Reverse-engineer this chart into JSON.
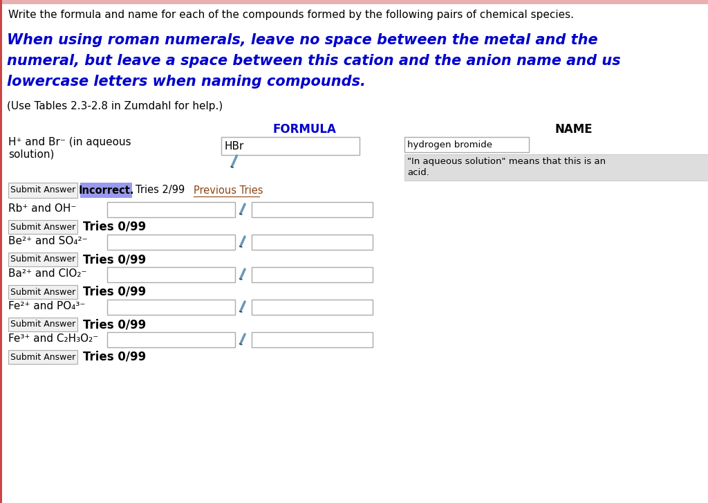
{
  "bg_color": "#ffffff",
  "top_border_color": "#e8a0a0",
  "header_text": "Write the formula and name for each of the compounds formed by the following pairs of chemical species.",
  "instruction_lines": [
    "When using roman numerals, leave no space between the metal and the",
    "numeral, but leave a space between this cation and the anion name and us",
    "lowercase letters when naming compounds."
  ],
  "instruction_color": "#0000cc",
  "zumdahl_note": "(Use Tables 2.3-2.8 in Zumdahl for help.)",
  "formula_label": "FORMULA",
  "name_label": "NAME",
  "formula_label_color": "#0000cc",
  "name_label_color": "#000000",
  "row1_reactants_line1": "H⁺ and Br⁻ (in aqueous",
  "row1_reactants_line2": "solution)",
  "row1_formula": "HBr",
  "row1_name": "hydrogen bromide",
  "row1_note_line1": "\"In aqueous solution\" means that this is an",
  "row1_note_line2": "acid.",
  "row1_note_bg": "#dddddd",
  "status_bg": "#9999ee",
  "status_text": "Incorrect.",
  "tries1": "Tries 2/99",
  "prev_tries": "Previous Tries",
  "prev_tries_color": "#8B4513",
  "rows": [
    {
      "label": "Rb⁺ and OH⁻"
    },
    {
      "label": "Be²⁺ and SO₄²⁻"
    },
    {
      "label": "Ba²⁺ and ClO₂⁻"
    },
    {
      "label": "Fe²⁺ and PO₄³⁻"
    },
    {
      "label": "Fe³⁺ and C₂H₃O₂⁻"
    }
  ],
  "tries_text": "Tries 0/99",
  "input_box_color": "#ffffff",
  "input_box_border": "#aaaaaa",
  "pencil_color": "#6699bb",
  "submit_btn_color": "#f0f0f0",
  "submit_btn_border": "#aaaaaa",
  "left_border_color": "#cc3333"
}
